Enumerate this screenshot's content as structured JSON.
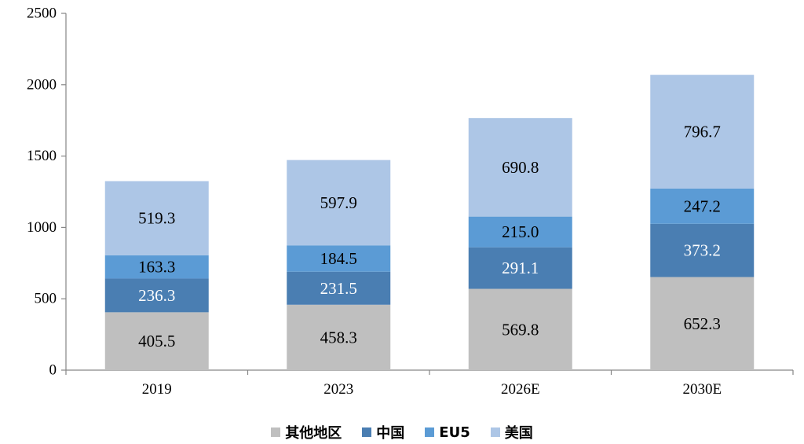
{
  "chart_data": {
    "type": "bar",
    "stacked": true,
    "categories": [
      "2019",
      "2023",
      "2026E",
      "2030E"
    ],
    "series": [
      {
        "name": "其他地区",
        "color": "#bfbfbf",
        "label_color": "#000000",
        "values": [
          405.5,
          458.3,
          569.8,
          652.3
        ]
      },
      {
        "name": "中国",
        "color": "#4a7eb2",
        "label_color": "#ffffff",
        "values": [
          236.3,
          231.5,
          291.1,
          373.2
        ]
      },
      {
        "name": "EU5",
        "color": "#5b9bd5",
        "label_color": "#000000",
        "values": [
          163.3,
          184.5,
          215.0,
          247.2
        ]
      },
      {
        "name": "美国",
        "color": "#adc6e6",
        "label_color": "#000000",
        "values": [
          519.3,
          597.9,
          690.8,
          796.7
        ]
      }
    ],
    "ylim": [
      0,
      2500
    ],
    "yticks": [
      "0",
      "500",
      "1000",
      "1500",
      "2000",
      "2500"
    ],
    "grid": false,
    "legend_position": "bottom",
    "title": "",
    "xlabel": "",
    "ylabel": ""
  }
}
